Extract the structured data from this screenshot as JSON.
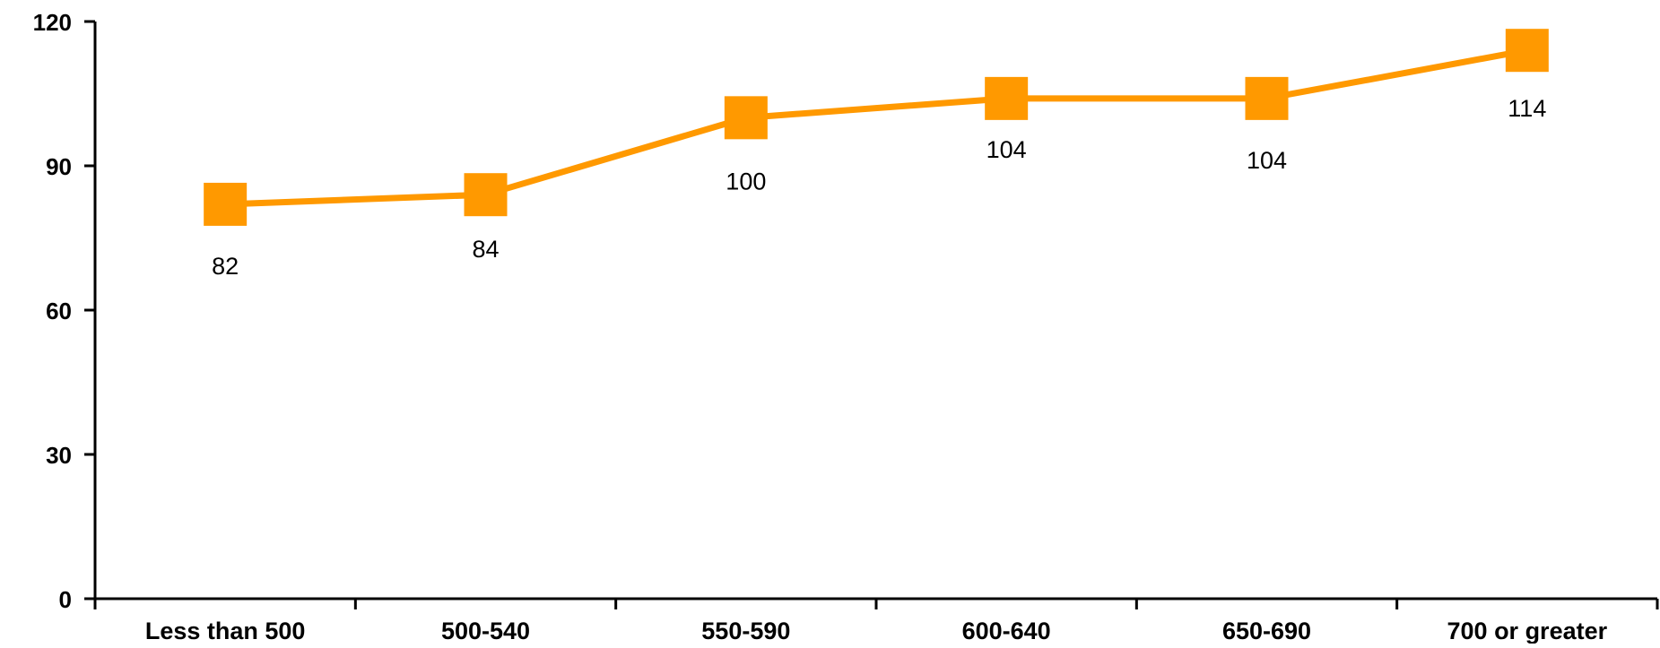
{
  "chart_data": {
    "type": "line",
    "categories": [
      "Less than 500",
      "500-540",
      "550-590",
      "600-640",
      "650-690",
      "700 or greater"
    ],
    "series": [
      {
        "values": [
          82,
          84,
          100,
          104,
          104,
          114
        ],
        "color": "#ff9900",
        "marker": "square"
      }
    ],
    "data_labels": [
      "82",
      "84",
      "100",
      "104",
      "104",
      "114"
    ],
    "ylim": [
      0,
      120
    ],
    "yticks": [
      0,
      30,
      60,
      90,
      120
    ],
    "ytick_labels": [
      "0",
      "30",
      "60",
      "90",
      "120"
    ],
    "grid": false,
    "legend": "none",
    "title": "",
    "xlabel": "",
    "ylabel": ""
  }
}
